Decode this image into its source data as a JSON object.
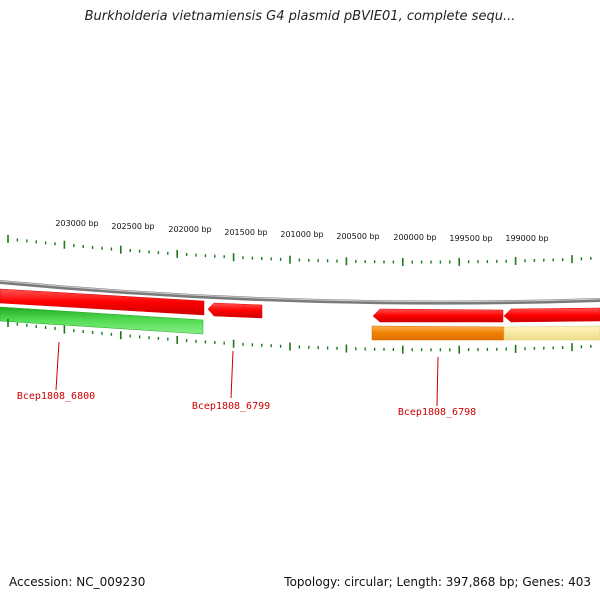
{
  "title": "Burkholderia vietnamiensis G4 plasmid pBVIE01, complete sequ...",
  "footer": {
    "accession": "Accession: NC_009230",
    "topology": "Topology: circular; Length: 397,868 bp; Genes: 403"
  },
  "ruler": {
    "labels": [
      "203000 bp",
      "202500 bp",
      "202000 bp",
      "201500 bp",
      "201000 bp",
      "200500 bp",
      "200000 bp",
      "199500 bp",
      "199000 bp"
    ]
  },
  "genes": [
    {
      "name": "Bcep1808_6800"
    },
    {
      "name": "Bcep1808_6799"
    },
    {
      "name": "Bcep1808_6798"
    }
  ],
  "colors": {
    "gene_forward": "#ff0000",
    "cds_green": "#2ecc2e",
    "cds_orange": "#f07f00",
    "cds_pale": "#f0e28a",
    "backbone": "#888888",
    "ticks": "#1a7a1a",
    "gene_label": "#cc0000"
  }
}
